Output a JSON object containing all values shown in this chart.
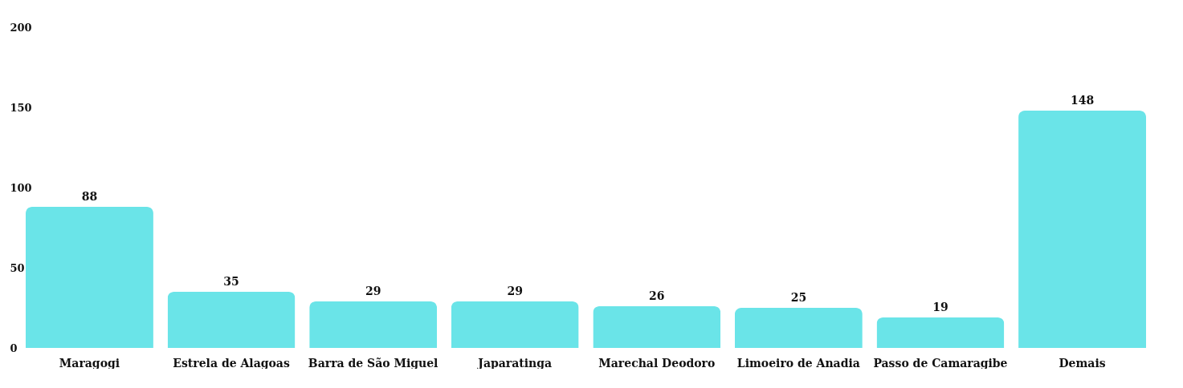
{
  "chart_data": {
    "type": "bar",
    "categories": [
      "Maragogi",
      "Estrela de Alagoas",
      "Barra de São Miguel",
      "Japaratinga",
      "Marechal Deodoro",
      "Limoeiro de Anadia",
      "Passo de Camaragibe",
      "Demais"
    ],
    "values": [
      88,
      35,
      29,
      29,
      26,
      25,
      19,
      148
    ],
    "color": "#6ae4e8",
    "ylim": [
      0,
      200
    ],
    "yticks": [
      0,
      50,
      100,
      150,
      200
    ],
    "grid": false,
    "data_labels": true
  }
}
